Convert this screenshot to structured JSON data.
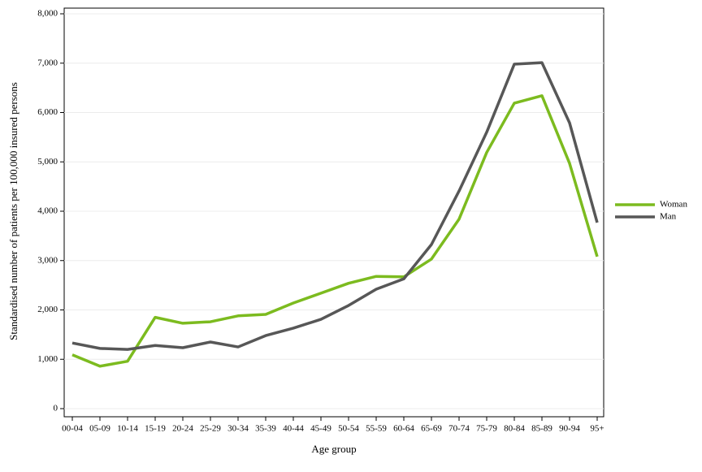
{
  "chart_data": {
    "type": "line",
    "x_label": "Age group",
    "y_label": "Standardised number of patients per 100,000 insured persons",
    "categories": [
      "00-04",
      "05-09",
      "10-14",
      "15-19",
      "20-24",
      "25-29",
      "30-34",
      "35-39",
      "40-44",
      "45-49",
      "50-54",
      "55-59",
      "60-64",
      "65-69",
      "70-74",
      "75-79",
      "80-84",
      "85-89",
      "90-94",
      "95+"
    ],
    "series": [
      {
        "name": "Woman",
        "color": "#7cbb1f",
        "values": [
          1090,
          860,
          960,
          1850,
          1730,
          1760,
          1880,
          1910,
          2140,
          2340,
          2540,
          2680,
          2670,
          3030,
          3840,
          5190,
          6190,
          6340,
          4970,
          3080
        ]
      },
      {
        "name": "Man",
        "color": "#575757",
        "values": [
          1330,
          1220,
          1200,
          1280,
          1235,
          1350,
          1250,
          1480,
          1630,
          1810,
          2090,
          2420,
          2630,
          3325,
          4410,
          5600,
          6980,
          7010,
          5790,
          3770
        ]
      }
    ],
    "ylim": [
      0,
      8000
    ],
    "yticks": [
      0,
      {
        "value": 1000,
        "label": "1,000"
      },
      {
        "value": 2000,
        "label": "2,000"
      },
      {
        "value": 3000,
        "label": "3,000"
      },
      {
        "value": 4000,
        "label": "4,000"
      },
      {
        "value": 5000,
        "label": "5,000"
      },
      {
        "value": 6000,
        "label": "6,000"
      },
      {
        "value": 7000,
        "label": "7,000"
      },
      {
        "value": 8000,
        "label": "8,000"
      }
    ],
    "grid": true,
    "legend": "right"
  }
}
